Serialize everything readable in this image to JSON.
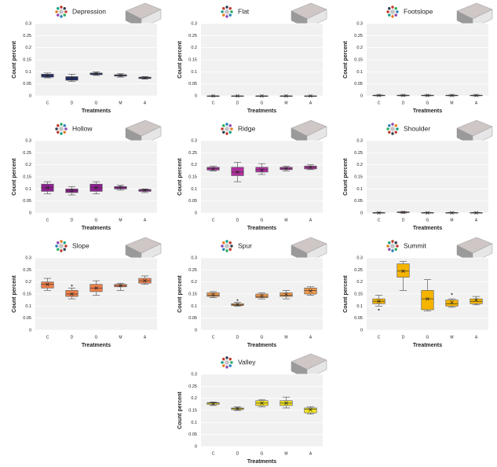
{
  "chart_data": [
    {
      "type": "box",
      "title": "Depression",
      "ylabel": "Count percent",
      "xlabel": "Treatments",
      "color": "#1f2a6e",
      "categories": [
        "C",
        "D",
        "G",
        "M",
        "A"
      ],
      "ylim": [
        0,
        0.3
      ],
      "yticks": [
        0,
        0.05,
        0.1,
        0.15,
        0.2,
        0.25,
        0.3
      ],
      "boxes": [
        {
          "min": 0.075,
          "q1": 0.078,
          "median": 0.085,
          "q3": 0.09,
          "max": 0.095,
          "mean": 0.083
        },
        {
          "min": 0.06,
          "q1": 0.065,
          "median": 0.073,
          "q3": 0.08,
          "max": 0.09,
          "mean": 0.073
        },
        {
          "min": 0.085,
          "q1": 0.088,
          "median": 0.092,
          "q3": 0.095,
          "max": 0.1,
          "mean": 0.092
        },
        {
          "min": 0.078,
          "q1": 0.082,
          "median": 0.085,
          "q3": 0.088,
          "max": 0.092,
          "mean": 0.085
        },
        {
          "min": 0.07,
          "q1": 0.072,
          "median": 0.075,
          "q3": 0.078,
          "max": 0.08,
          "mean": 0.075
        }
      ]
    },
    {
      "type": "box",
      "title": "Flat",
      "ylabel": "Count percent",
      "xlabel": "Treatments",
      "color": "#9a9a9a",
      "categories": [
        "C",
        "D",
        "G",
        "M",
        "A"
      ],
      "ylim": [
        0,
        0.3
      ],
      "yticks": [
        0,
        0.05,
        0.1,
        0.15,
        0.2,
        0.25,
        0.3
      ],
      "boxes": [
        {
          "min": 0,
          "q1": 0,
          "median": 0,
          "q3": 0,
          "max": 0,
          "mean": 0
        },
        {
          "min": 0,
          "q1": 0,
          "median": 0,
          "q3": 0,
          "max": 0,
          "mean": 0
        },
        {
          "min": 0,
          "q1": 0,
          "median": 0,
          "q3": 0,
          "max": 0,
          "mean": 0
        },
        {
          "min": 0,
          "q1": 0,
          "median": 0,
          "q3": 0,
          "max": 0,
          "mean": 0
        },
        {
          "min": 0,
          "q1": 0,
          "median": 0,
          "q3": 0,
          "max": 0,
          "mean": 0
        }
      ]
    },
    {
      "type": "box",
      "title": "Footslope",
      "ylabel": "Count percent",
      "xlabel": "Treatments",
      "color": "#9a9a9a",
      "categories": [
        "C",
        "D",
        "G",
        "M",
        "A"
      ],
      "ylim": [
        0,
        0.3
      ],
      "yticks": [
        0,
        0.05,
        0.1,
        0.15,
        0.2,
        0.25,
        0.3
      ],
      "boxes": [
        {
          "min": 0,
          "q1": 0.001,
          "median": 0.002,
          "q3": 0.003,
          "max": 0.004,
          "mean": 0.002
        },
        {
          "min": 0,
          "q1": 0.001,
          "median": 0.002,
          "q3": 0.003,
          "max": 0.004,
          "mean": 0.002
        },
        {
          "min": 0,
          "q1": 0.001,
          "median": 0.002,
          "q3": 0.003,
          "max": 0.004,
          "mean": 0.002
        },
        {
          "min": 0,
          "q1": 0.001,
          "median": 0.002,
          "q3": 0.003,
          "max": 0.004,
          "mean": 0.002
        },
        {
          "min": 0,
          "q1": 0.001,
          "median": 0.002,
          "q3": 0.003,
          "max": 0.004,
          "mean": 0.002
        }
      ]
    },
    {
      "type": "box",
      "title": "Hollow",
      "ylabel": "Count percent",
      "xlabel": "Treatments",
      "color": "#8e1f91",
      "categories": [
        "C",
        "D",
        "G",
        "M",
        "A"
      ],
      "ylim": [
        0,
        0.3
      ],
      "yticks": [
        0,
        0.05,
        0.1,
        0.15,
        0.2,
        0.25,
        0.3
      ],
      "boxes": [
        {
          "min": 0.08,
          "q1": 0.09,
          "median": 0.105,
          "q3": 0.12,
          "max": 0.13,
          "mean": 0.105
        },
        {
          "min": 0.075,
          "q1": 0.085,
          "median": 0.092,
          "q3": 0.1,
          "max": 0.11,
          "mean": 0.093
        },
        {
          "min": 0.08,
          "q1": 0.09,
          "median": 0.105,
          "q3": 0.12,
          "max": 0.13,
          "mean": 0.105
        },
        {
          "min": 0.095,
          "q1": 0.1,
          "median": 0.105,
          "q3": 0.11,
          "max": 0.115,
          "mean": 0.107
        },
        {
          "min": 0.085,
          "q1": 0.09,
          "median": 0.095,
          "q3": 0.098,
          "max": 0.1,
          "mean": 0.095
        }
      ]
    },
    {
      "type": "box",
      "title": "Ridge",
      "ylabel": "Count percent",
      "xlabel": "Treatments",
      "color": "#b0309f",
      "categories": [
        "C",
        "D",
        "G",
        "M",
        "A"
      ],
      "ylim": [
        0,
        0.3
      ],
      "yticks": [
        0,
        0.05,
        0.1,
        0.15,
        0.2,
        0.25,
        0.3
      ],
      "boxes": [
        {
          "min": 0.175,
          "q1": 0.178,
          "median": 0.185,
          "q3": 0.19,
          "max": 0.195,
          "mean": 0.183
        },
        {
          "min": 0.13,
          "q1": 0.155,
          "median": 0.17,
          "q3": 0.19,
          "max": 0.21,
          "mean": 0.17
        },
        {
          "min": 0.16,
          "q1": 0.17,
          "median": 0.18,
          "q3": 0.19,
          "max": 0.205,
          "mean": 0.178
        },
        {
          "min": 0.175,
          "q1": 0.18,
          "median": 0.185,
          "q3": 0.19,
          "max": 0.195,
          "mean": 0.185
        },
        {
          "min": 0.18,
          "q1": 0.183,
          "median": 0.19,
          "q3": 0.195,
          "max": 0.2,
          "mean": 0.19
        }
      ]
    },
    {
      "type": "box",
      "title": "Shoulder",
      "ylabel": "Count percent",
      "xlabel": "Treatments",
      "color": "#b0309f",
      "categories": [
        "C",
        "D",
        "G",
        "M",
        "A"
      ],
      "ylim": [
        0,
        0.3
      ],
      "yticks": [
        0,
        0.05,
        0.1,
        0.15,
        0.2,
        0.25,
        0.3
      ],
      "boxes": [
        {
          "min": 0,
          "q1": 0,
          "median": 0.001,
          "q3": 0.002,
          "max": 0.003,
          "mean": 0.001
        },
        {
          "min": 0,
          "q1": 0.002,
          "median": 0.003,
          "q3": 0.005,
          "max": 0.006,
          "mean": 0.003
        },
        {
          "min": 0,
          "q1": 0,
          "median": 0.001,
          "q3": 0.002,
          "max": 0.003,
          "mean": 0.001
        },
        {
          "min": 0,
          "q1": 0,
          "median": 0.001,
          "q3": 0.002,
          "max": 0.003,
          "mean": 0.001
        },
        {
          "min": 0,
          "q1": 0,
          "median": 0.001,
          "q3": 0.002,
          "max": 0.003,
          "mean": 0.001
        }
      ]
    },
    {
      "type": "box",
      "title": "Slope",
      "ylabel": "Count percent",
      "xlabel": "Treatments",
      "color": "#f07f4a",
      "categories": [
        "C",
        "D",
        "G",
        "M",
        "A"
      ],
      "ylim": [
        0,
        0.3
      ],
      "yticks": [
        0,
        0.05,
        0.1,
        0.15,
        0.2,
        0.25,
        0.3
      ],
      "boxes": [
        {
          "min": 0.165,
          "q1": 0.175,
          "median": 0.19,
          "q3": 0.2,
          "max": 0.215,
          "mean": 0.19
        },
        {
          "min": 0.13,
          "q1": 0.14,
          "median": 0.15,
          "q3": 0.165,
          "max": 0.175,
          "mean": 0.15,
          "outliers": [
            0.185
          ]
        },
        {
          "min": 0.145,
          "q1": 0.16,
          "median": 0.175,
          "q3": 0.19,
          "max": 0.205,
          "mean": 0.175
        },
        {
          "min": 0.165,
          "q1": 0.18,
          "median": 0.185,
          "q3": 0.19,
          "max": 0.195,
          "mean": 0.185
        },
        {
          "min": 0.19,
          "q1": 0.195,
          "median": 0.205,
          "q3": 0.215,
          "max": 0.225,
          "mean": 0.205
        }
      ]
    },
    {
      "type": "box",
      "title": "Spur",
      "ylabel": "Count percent",
      "xlabel": "Treatments",
      "color": "#f29a4a",
      "categories": [
        "C",
        "D",
        "G",
        "M",
        "A"
      ],
      "ylim": [
        0,
        0.3
      ],
      "yticks": [
        0,
        0.05,
        0.1,
        0.15,
        0.2,
        0.25,
        0.3
      ],
      "boxes": [
        {
          "min": 0.135,
          "q1": 0.14,
          "median": 0.145,
          "q3": 0.155,
          "max": 0.16,
          "mean": 0.147
        },
        {
          "min": 0.1,
          "q1": 0.102,
          "median": 0.105,
          "q3": 0.11,
          "max": 0.115,
          "mean": 0.106,
          "outliers": [
            0.125
          ]
        },
        {
          "min": 0.13,
          "q1": 0.135,
          "median": 0.14,
          "q3": 0.15,
          "max": 0.155,
          "mean": 0.142
        },
        {
          "min": 0.13,
          "q1": 0.14,
          "median": 0.145,
          "q3": 0.155,
          "max": 0.165,
          "mean": 0.148
        },
        {
          "min": 0.145,
          "q1": 0.15,
          "median": 0.165,
          "q3": 0.175,
          "max": 0.18,
          "mean": 0.163
        }
      ]
    },
    {
      "type": "box",
      "title": "Summit",
      "ylabel": "Count percent",
      "xlabel": "Treatments",
      "color": "#f5b400",
      "categories": [
        "C",
        "D",
        "G",
        "M",
        "A"
      ],
      "ylim": [
        0,
        0.3
      ],
      "yticks": [
        0,
        0.05,
        0.1,
        0.15,
        0.2,
        0.25,
        0.3
      ],
      "boxes": [
        {
          "min": 0.1,
          "q1": 0.11,
          "median": 0.12,
          "q3": 0.13,
          "max": 0.145,
          "mean": 0.12,
          "outliers": [
            0.085
          ]
        },
        {
          "min": 0.165,
          "q1": 0.22,
          "median": 0.245,
          "q3": 0.275,
          "max": 0.285,
          "mean": 0.245
        },
        {
          "min": 0.08,
          "q1": 0.085,
          "median": 0.13,
          "q3": 0.165,
          "max": 0.21,
          "mean": 0.13
        },
        {
          "min": 0.095,
          "q1": 0.1,
          "median": 0.11,
          "q3": 0.125,
          "max": 0.13,
          "mean": 0.115,
          "outliers": [
            0.15
          ]
        },
        {
          "min": 0.105,
          "q1": 0.11,
          "median": 0.12,
          "q3": 0.13,
          "max": 0.14,
          "mean": 0.125
        }
      ]
    },
    {
      "type": "box",
      "title": "Valley",
      "ylabel": "Count percent",
      "xlabel": "Treatments",
      "color": "#f2e21f",
      "categories": [
        "C",
        "D",
        "G",
        "M",
        "A"
      ],
      "ylim": [
        0,
        0.3
      ],
      "yticks": [
        0,
        0.05,
        0.1,
        0.15,
        0.2,
        0.25,
        0.3
      ],
      "boxes": [
        {
          "min": 0.17,
          "q1": 0.175,
          "median": 0.18,
          "q3": 0.182,
          "max": 0.185,
          "mean": 0.178
        },
        {
          "min": 0.15,
          "q1": 0.153,
          "median": 0.157,
          "q3": 0.16,
          "max": 0.165,
          "mean": 0.157
        },
        {
          "min": 0.165,
          "q1": 0.17,
          "median": 0.18,
          "q3": 0.19,
          "max": 0.195,
          "mean": 0.18
        },
        {
          "min": 0.16,
          "q1": 0.17,
          "median": 0.18,
          "q3": 0.19,
          "max": 0.205,
          "mean": 0.18
        },
        {
          "min": 0.135,
          "q1": 0.14,
          "median": 0.155,
          "q3": 0.16,
          "max": 0.165,
          "mean": 0.153
        }
      ]
    }
  ]
}
